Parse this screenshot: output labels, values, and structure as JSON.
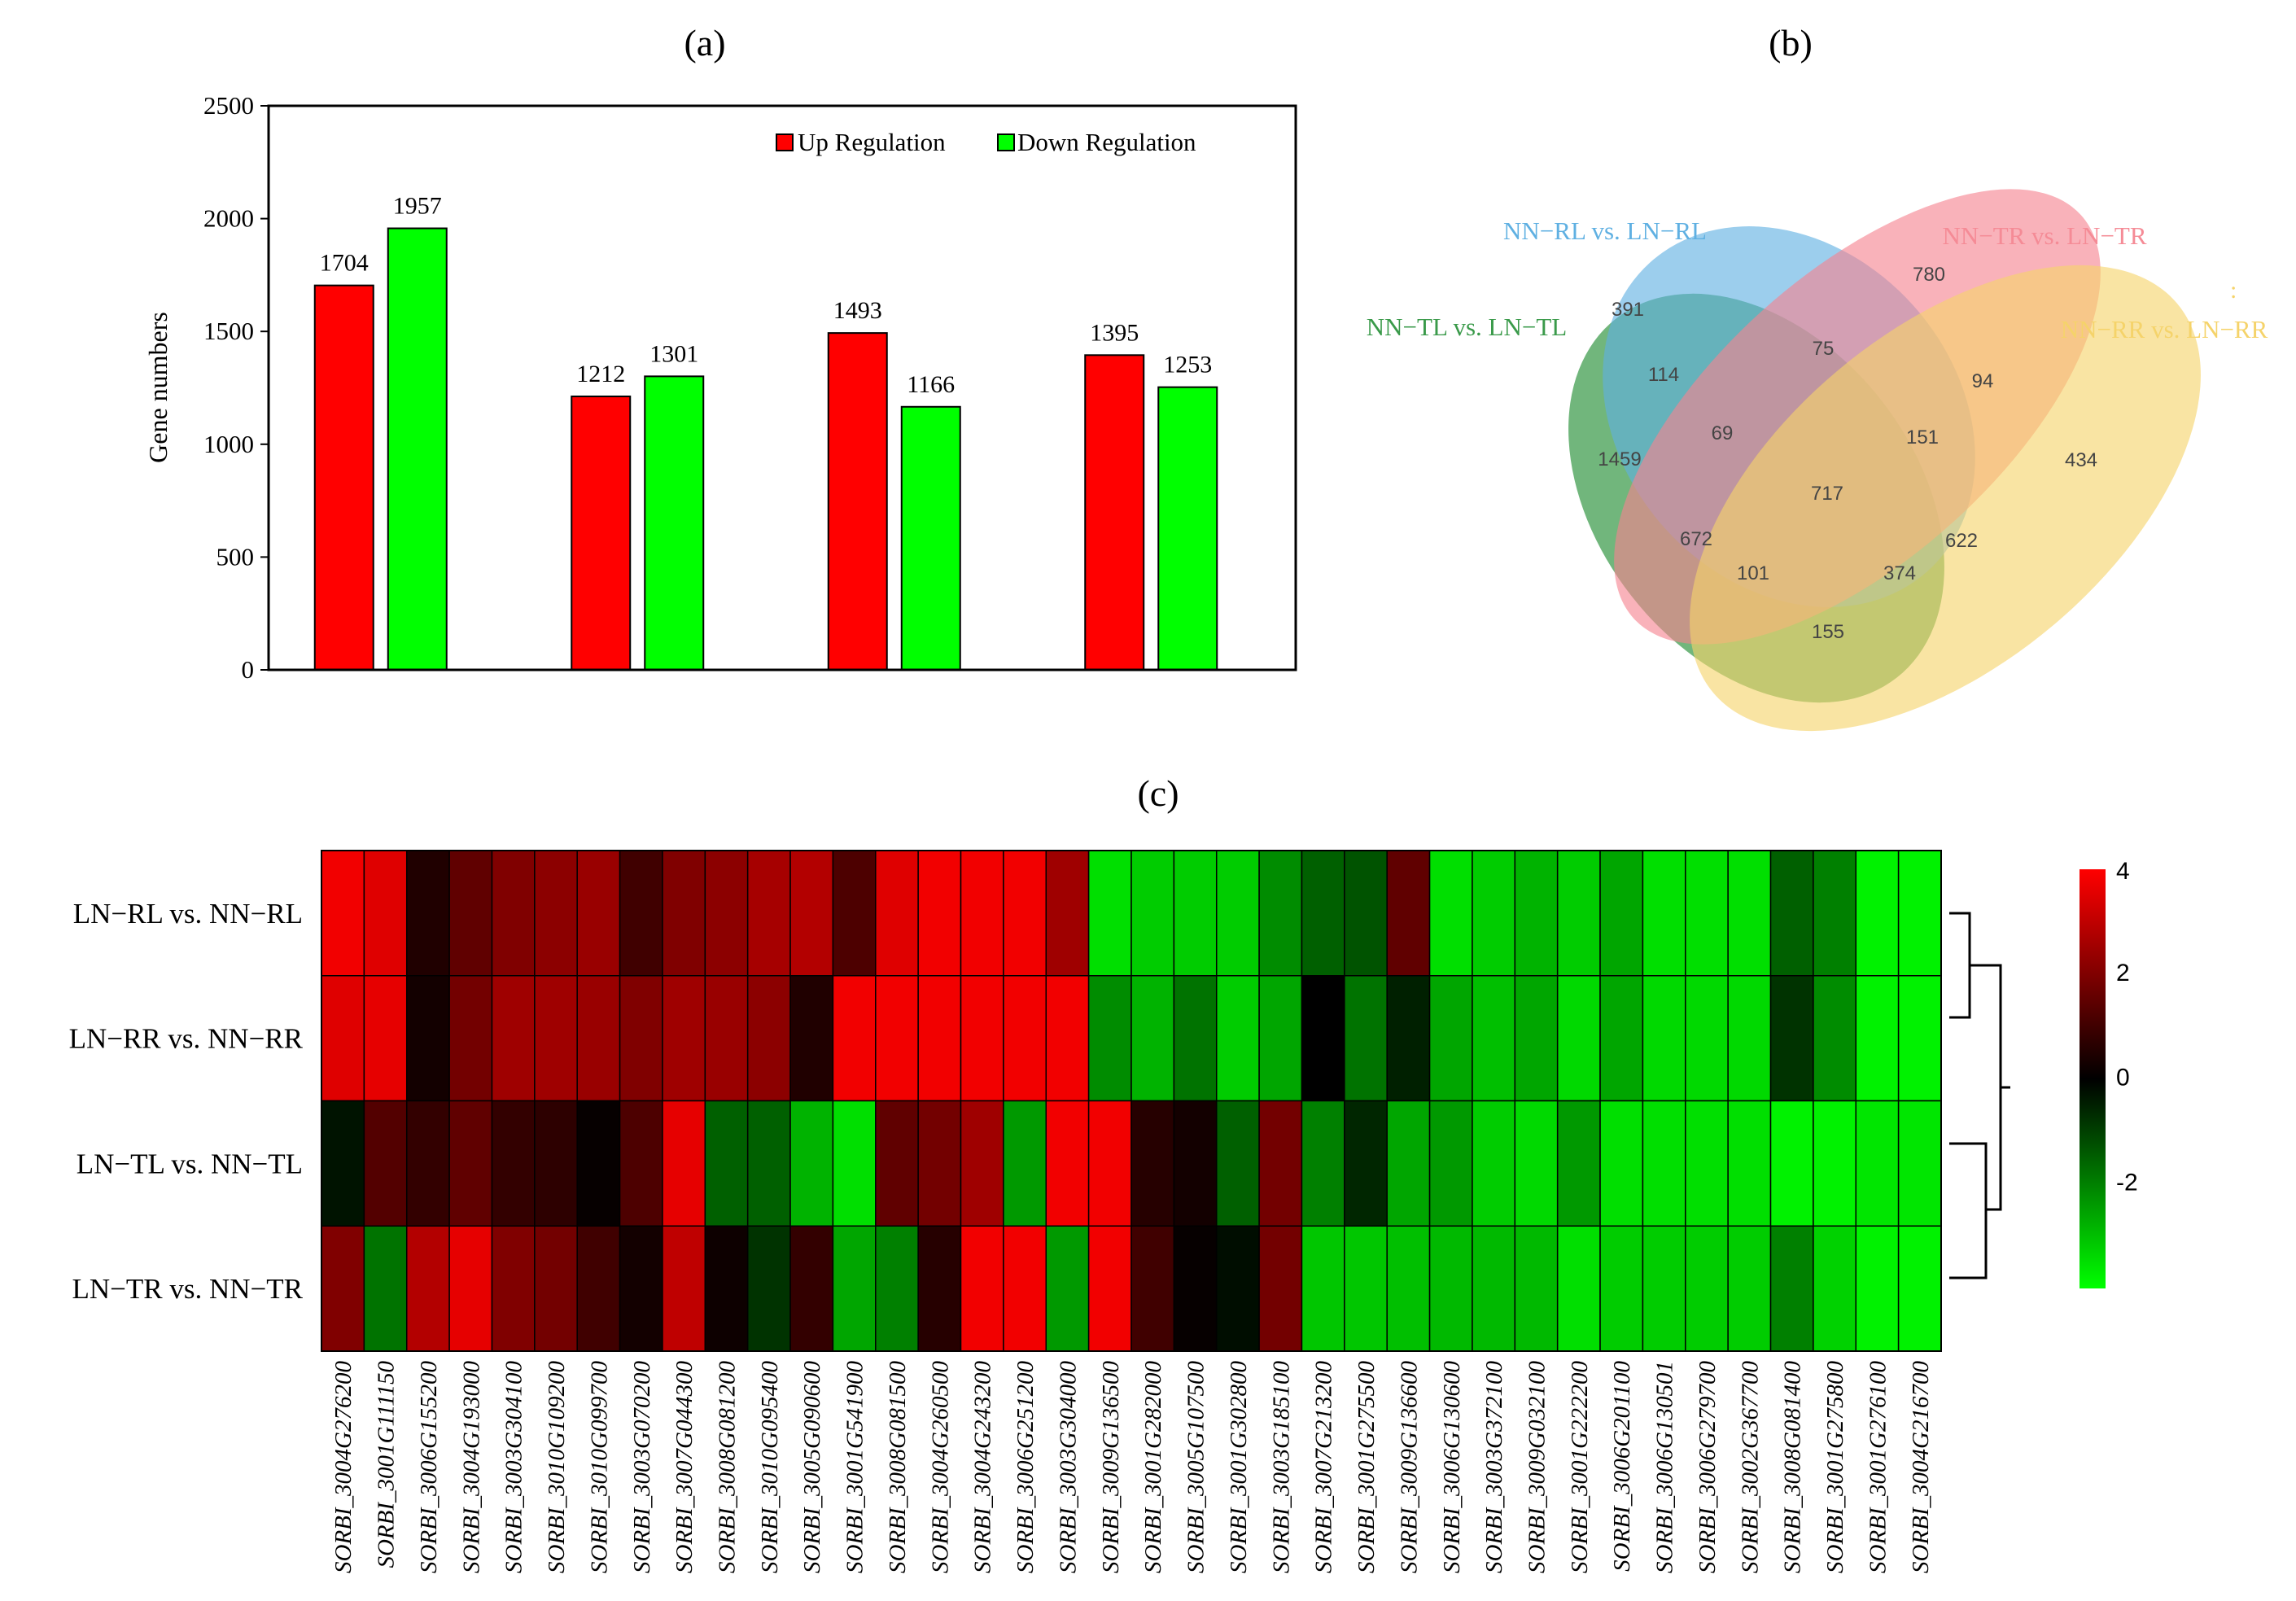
{
  "panel_labels": {
    "a": "(a)",
    "b": "(b)",
    "c": "(c)"
  },
  "chart_data": [
    {
      "type": "bar",
      "panel": "a",
      "title": "",
      "xlabel": "",
      "ylabel": "Gene numbers",
      "ylim": [
        0,
        2500
      ],
      "yticks": [
        0,
        500,
        1000,
        1500,
        2000,
        2500
      ],
      "categories": [
        "",
        "",
        "",
        ""
      ],
      "legend_position": "top-right",
      "series": [
        {
          "name": "Up Regulation",
          "color": "#ff0000",
          "values": [
            1704,
            1212,
            1493,
            1395
          ]
        },
        {
          "name": "Down Regulation",
          "color": "#00ff00",
          "values": [
            1957,
            1301,
            1166,
            1253
          ]
        }
      ]
    },
    {
      "type": "venn",
      "panel": "b",
      "sets": [
        {
          "name": "NN−RL vs. LN−RL",
          "color": "#5fb0e2"
        },
        {
          "name": "NN−TR vs. LN−TR",
          "color": "#f6828f"
        },
        {
          "name": "NN−TL vs. LN−TL",
          "color": "#3a9a4a"
        },
        {
          "name": "NN−RR vs. LN−RR",
          "color": "#f5d36a"
        }
      ],
      "stray_mark": ":",
      "regions": [
        {
          "sets": [
            "RL"
          ],
          "value": 391
        },
        {
          "sets": [
            "TR"
          ],
          "value": 780
        },
        {
          "sets": [
            "TL"
          ],
          "value": 1459
        },
        {
          "sets": [
            "RR"
          ],
          "value": 434
        },
        {
          "sets": [
            "RL",
            "TR"
          ],
          "value": 75
        },
        {
          "sets": [
            "RL",
            "TL"
          ],
          "value": 114
        },
        {
          "sets": [
            "TR",
            "RR"
          ],
          "value": 94
        },
        {
          "sets": [
            "RL",
            "TR",
            "TL"
          ],
          "value": 69
        },
        {
          "sets": [
            "RL",
            "TR",
            "RR"
          ],
          "value": 151
        },
        {
          "sets": [
            "RL",
            "TR",
            "TL",
            "RR"
          ],
          "value": 717
        },
        {
          "sets": [
            "TR",
            "TL"
          ],
          "value": 672
        },
        {
          "sets": [
            "RL",
            "RR"
          ],
          "value": 622
        },
        {
          "sets": [
            "TR",
            "TL",
            "RR"
          ],
          "value": 101
        },
        {
          "sets": [
            "RL",
            "TL",
            "RR"
          ],
          "value": 374
        },
        {
          "sets": [
            "TL",
            "RR"
          ],
          "value": 155
        }
      ]
    },
    {
      "type": "heatmap",
      "panel": "c",
      "rows": [
        "LN−RL vs. NN−RL",
        "LN−RR vs. NN−RR",
        "LN−TL vs. NN−TL",
        "LN−TR vs. NN−TR"
      ],
      "columns": [
        "SORBI_3004G276200",
        "SORBI_3001G111150",
        "SORBI_3006G155200",
        "SORBI_3004G193000",
        "SORBI_3003G304100",
        "SORBI_3010G109200",
        "SORBI_3010G099700",
        "SORBI_3003G070200",
        "SORBI_3007G044300",
        "SORBI_3008G081200",
        "SORBI_3010G095400",
        "SORBI_3005G090600",
        "SORBI_3001G541900",
        "SORBI_3008G081500",
        "SORBI_3004G260500",
        "SORBI_3004G243200",
        "SORBI_3006G251200",
        "SORBI_3003G304000",
        "SORBI_3009G136500",
        "SORBI_3001G282000",
        "SORBI_3005G107500",
        "SORBI_3001G302800",
        "SORBI_3003G185100",
        "SORBI_3007G213200",
        "SORBI_3001G275500",
        "SORBI_3009G136600",
        "SORBI_3006G130600",
        "SORBI_3003G372100",
        "SORBI_3009G032100",
        "SORBI_3001G222200",
        "SORBI_3006G201100",
        "SORBI_3006G130501",
        "SORBI_3006G279700",
        "SORBI_3002G367700",
        "SORBI_3008G081400",
        "SORBI_3001G275800",
        "SORBI_3001G276100",
        "SORBI_3004G216700"
      ],
      "values": [
        [
          3.8,
          3.5,
          0.5,
          1.5,
          2,
          2.2,
          2.4,
          1,
          2,
          2.2,
          2.6,
          2.8,
          1.2,
          3.5,
          3.8,
          3.8,
          3.8,
          2.5,
          -3.5,
          -3.2,
          -3.2,
          -3.2,
          -2.2,
          -1.5,
          -1.3,
          1.5,
          -3.5,
          -3.2,
          -2.8,
          -3.2,
          -2.6,
          -3.5,
          -3.5,
          -3.5,
          -1.5,
          -2,
          -3.8,
          -3.8
        ],
        [
          3.5,
          3.6,
          0.3,
          1.8,
          2.5,
          2.5,
          2.4,
          2,
          2.5,
          2.4,
          2.2,
          0.5,
          3.8,
          3.8,
          3.8,
          3.8,
          3.8,
          3.8,
          -2.2,
          -2.8,
          -1.8,
          -3.2,
          -2.6,
          0,
          -1.8,
          -0.5,
          -2.6,
          -3,
          -2.6,
          -3.4,
          -2.6,
          -3.4,
          -3.4,
          -3.4,
          -0.8,
          -2.2,
          -3.8,
          -3.8
        ],
        [
          -0.3,
          1.3,
          0.8,
          1.5,
          0.8,
          0.7,
          0.1,
          1.2,
          3.6,
          -1.5,
          -1.5,
          -2.8,
          -3.5,
          1.5,
          1.8,
          2.5,
          -2.4,
          3.8,
          3.8,
          0.6,
          0.3,
          -1.5,
          1.8,
          -2,
          -0.6,
          -2.6,
          -2.4,
          -3.2,
          -3.4,
          -2.4,
          -3.5,
          -3.5,
          -3.5,
          -3.5,
          -3.8,
          -3.8,
          -3.6,
          -3.6
        ],
        [
          2,
          -1.8,
          2.8,
          3.6,
          2,
          1.8,
          1,
          0.3,
          3,
          0.2,
          -0.8,
          0.8,
          -2.6,
          -2,
          0.6,
          3.8,
          3.8,
          -2.4,
          3.8,
          1,
          0.1,
          -0.2,
          1.8,
          -3.1,
          -3.1,
          -3,
          -2.9,
          -2.9,
          -2.9,
          -3.5,
          -3.2,
          -3.2,
          -3.2,
          -3.2,
          -2,
          -3.3,
          -3.8,
          -3.8
        ]
      ],
      "colorbar": {
        "range": [
          -4,
          4
        ],
        "ticks": [
          4,
          2,
          0,
          -2
        ],
        "low_color": "#00ff00",
        "mid_color": "#000000",
        "high_color": "#ff0000"
      }
    }
  ]
}
